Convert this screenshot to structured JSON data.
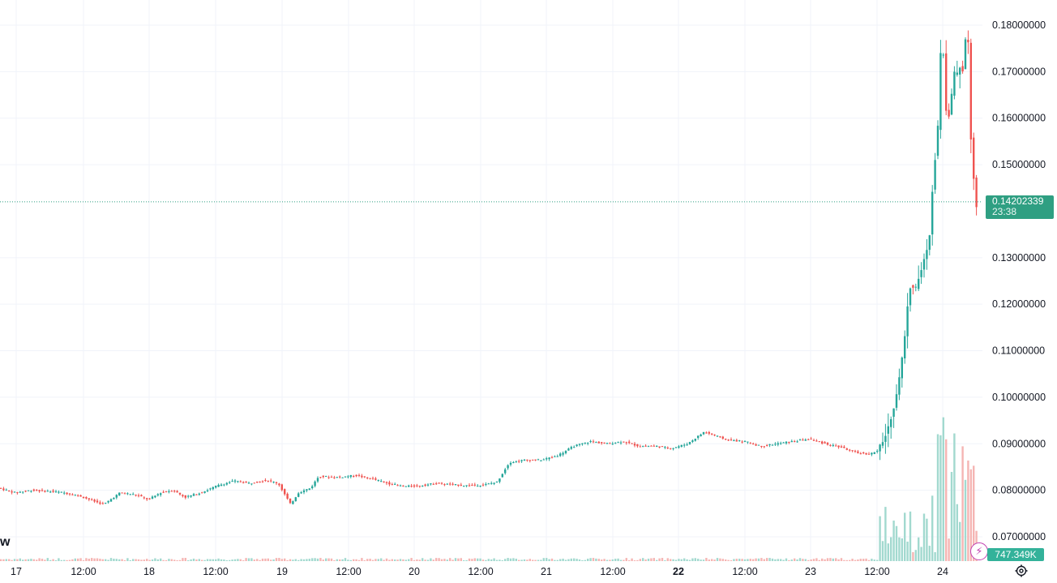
{
  "chart_data": {
    "type": "candlestick",
    "price_axis": {
      "ticks": [
        {
          "value": 0.18,
          "label": "0.18000000"
        },
        {
          "value": 0.17,
          "label": "0.17000000"
        },
        {
          "value": 0.16,
          "label": "0.16000000"
        },
        {
          "value": 0.15,
          "label": "0.15000000"
        },
        {
          "value": 0.13,
          "label": "0.13000000"
        },
        {
          "value": 0.12,
          "label": "0.12000000"
        },
        {
          "value": 0.11,
          "label": "0.11000000"
        },
        {
          "value": 0.1,
          "label": "0.10000000"
        },
        {
          "value": 0.09,
          "label": "0.09000000"
        },
        {
          "value": 0.08,
          "label": "0.08000000"
        },
        {
          "value": 0.07,
          "label": "0.07000000"
        }
      ],
      "range": [
        0.0658,
        0.1825
      ]
    },
    "time_axis": {
      "ticks": [
        {
          "label": "17",
          "bold": false
        },
        {
          "label": "12:00",
          "bold": false
        },
        {
          "label": "18",
          "bold": false
        },
        {
          "label": "12:00",
          "bold": false
        },
        {
          "label": "19",
          "bold": false
        },
        {
          "label": "12:00",
          "bold": false
        },
        {
          "label": "20",
          "bold": false
        },
        {
          "label": "12:00",
          "bold": false
        },
        {
          "label": "21",
          "bold": false
        },
        {
          "label": "12:00",
          "bold": false
        },
        {
          "label": "22",
          "bold": true
        },
        {
          "label": "12:00",
          "bold": false
        },
        {
          "label": "23",
          "bold": false
        },
        {
          "label": "12:00",
          "bold": false
        },
        {
          "label": "24",
          "bold": false
        }
      ]
    },
    "last_price": {
      "value": 0.14202339,
      "label": "0.14202339",
      "countdown": "23:38"
    },
    "volume_label": "747.349K",
    "price_path": [
      [
        0,
        0.0805
      ],
      [
        20,
        0.0795
      ],
      [
        40,
        0.08
      ],
      [
        60,
        0.0798
      ],
      [
        80,
        0.0795
      ],
      [
        100,
        0.0788
      ],
      [
        120,
        0.0775
      ],
      [
        130,
        0.077
      ],
      [
        150,
        0.0795
      ],
      [
        170,
        0.079
      ],
      [
        185,
        0.078
      ],
      [
        200,
        0.0795
      ],
      [
        215,
        0.08
      ],
      [
        230,
        0.0785
      ],
      [
        250,
        0.0795
      ],
      [
        270,
        0.081
      ],
      [
        290,
        0.082
      ],
      [
        310,
        0.0815
      ],
      [
        330,
        0.0822
      ],
      [
        345,
        0.0815
      ],
      [
        360,
        0.077
      ],
      [
        370,
        0.0795
      ],
      [
        385,
        0.0805
      ],
      [
        395,
        0.083
      ],
      [
        420,
        0.0828
      ],
      [
        440,
        0.0832
      ],
      [
        460,
        0.0825
      ],
      [
        480,
        0.0815
      ],
      [
        500,
        0.0808
      ],
      [
        520,
        0.081
      ],
      [
        540,
        0.0815
      ],
      [
        560,
        0.0812
      ],
      [
        580,
        0.081
      ],
      [
        600,
        0.0812
      ],
      [
        615,
        0.0818
      ],
      [
        630,
        0.086
      ],
      [
        650,
        0.0865
      ],
      [
        670,
        0.0865
      ],
      [
        690,
        0.0875
      ],
      [
        710,
        0.0895
      ],
      [
        730,
        0.0905
      ],
      [
        750,
        0.09
      ],
      [
        770,
        0.0905
      ],
      [
        790,
        0.0895
      ],
      [
        810,
        0.0895
      ],
      [
        830,
        0.089
      ],
      [
        850,
        0.09
      ],
      [
        870,
        0.0925
      ],
      [
        880,
        0.092
      ],
      [
        900,
        0.0908
      ],
      [
        920,
        0.0905
      ],
      [
        940,
        0.0895
      ],
      [
        960,
        0.09
      ],
      [
        980,
        0.0905
      ],
      [
        1000,
        0.091
      ],
      [
        1020,
        0.09
      ],
      [
        1040,
        0.0892
      ],
      [
        1060,
        0.088
      ],
      [
        1075,
        0.0878
      ],
      [
        1085,
        0.0885
      ],
      [
        1095,
        0.092
      ],
      [
        1105,
        0.0985
      ],
      [
        1112,
        0.105
      ],
      [
        1118,
        0.113
      ],
      [
        1122,
        0.1215
      ],
      [
        1126,
        0.125
      ],
      [
        1130,
        0.123
      ],
      [
        1136,
        0.126
      ],
      [
        1142,
        0.1295
      ],
      [
        1148,
        0.133
      ],
      [
        1152,
        0.145
      ],
      [
        1157,
        0.155
      ],
      [
        1160,
        0.16
      ],
      [
        1163,
        0.18
      ],
      [
        1166,
        0.172
      ],
      [
        1170,
        0.158
      ],
      [
        1174,
        0.162
      ],
      [
        1178,
        0.17
      ],
      [
        1182,
        0.169
      ],
      [
        1186,
        0.171
      ],
      [
        1190,
        0.17
      ],
      [
        1193,
        0.178
      ],
      [
        1197,
        0.176
      ],
      [
        1200,
        0.152
      ],
      [
        1204,
        0.145
      ],
      [
        1207,
        0.14
      ],
      [
        1210,
        0.142
      ]
    ]
  },
  "colors": {
    "up": "#26a69a",
    "down": "#ef5350",
    "grid": "#f0f3fa",
    "last_price_line": "#2f9f82",
    "vol_up": "#a2d9cf",
    "vol_down": "#f5b5b3"
  },
  "icons": {
    "flash": "⚡",
    "settings": "settings-gear-icon",
    "logo_fragment": "w"
  }
}
